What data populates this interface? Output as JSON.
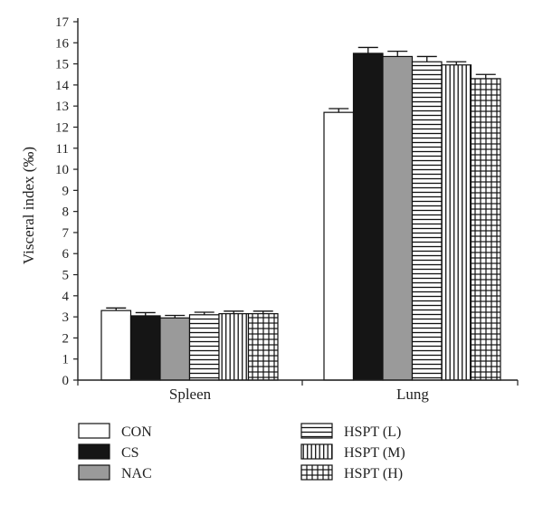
{
  "chart_data": {
    "type": "bar",
    "title": "",
    "xlabel": "",
    "ylabel": "Visceral index (‰)",
    "ylim": [
      0,
      17
    ],
    "yticks": [
      0,
      1,
      2,
      3,
      4,
      5,
      6,
      7,
      8,
      9,
      10,
      11,
      12,
      13,
      14,
      15,
      16,
      17
    ],
    "grid": false,
    "legend_position": "bottom",
    "categories": [
      "Spleen",
      "Lung"
    ],
    "series": [
      {
        "name": "CON",
        "values": [
          3.3,
          12.7
        ],
        "errors": [
          0.12,
          0.18
        ],
        "fill": "white"
      },
      {
        "name": "CS",
        "values": [
          3.05,
          15.5
        ],
        "errors": [
          0.15,
          0.28
        ],
        "fill": "black"
      },
      {
        "name": "NAC",
        "values": [
          2.95,
          15.35
        ],
        "errors": [
          0.12,
          0.25
        ],
        "fill": "gray"
      },
      {
        "name": "HSPT (L)",
        "values": [
          3.1,
          15.1
        ],
        "errors": [
          0.12,
          0.25
        ],
        "fill": "horizontal-lines"
      },
      {
        "name": "HSPT (M)",
        "values": [
          3.15,
          14.95
        ],
        "errors": [
          0.12,
          0.15
        ],
        "fill": "vertical-lines"
      },
      {
        "name": "HSPT (H)",
        "values": [
          3.15,
          14.3
        ],
        "errors": [
          0.12,
          0.2
        ],
        "fill": "grid"
      }
    ]
  }
}
